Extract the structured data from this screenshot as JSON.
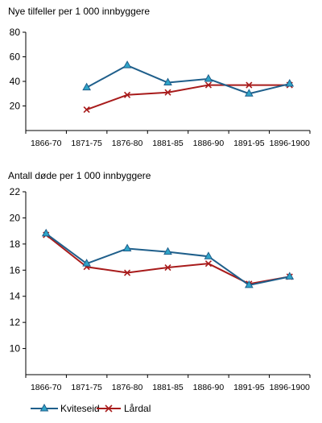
{
  "colors": {
    "kviteseid": "#1f5f8b",
    "kviteseid_marker": "#2fa4c8",
    "lardal": "#a81b1b"
  },
  "legend": {
    "placement": "bottom-left",
    "items": [
      "Kviteseid",
      "Lårdal"
    ]
  },
  "chart_data": [
    {
      "type": "line",
      "title": "Nye tilfeller per 1 000 innbyggere",
      "xlabel": "",
      "ylabel": "",
      "categories": [
        "1866-70",
        "1871-75",
        "1876-80",
        "1881-85",
        "1886-90",
        "1891-95",
        "1896-1900"
      ],
      "ylim": [
        0,
        80
      ],
      "yticks": [
        20,
        40,
        60,
        80
      ],
      "ytick_labels": [
        "20",
        "40",
        "60",
        "80"
      ],
      "grid": false,
      "series": [
        {
          "name": "Kviteseid",
          "marker": "triangle",
          "values": [
            null,
            35,
            53,
            39,
            42,
            30,
            38
          ]
        },
        {
          "name": "Lårdal",
          "marker": "x",
          "values": [
            null,
            17,
            29,
            31,
            37,
            37,
            37
          ]
        }
      ]
    },
    {
      "type": "line",
      "title": "Antall døde per 1 000 innbyggere",
      "xlabel": "",
      "ylabel": "",
      "categories": [
        "1866-70",
        "1871-75",
        "1876-80",
        "1881-85",
        "1886-90",
        "1891-95",
        "1896-1900"
      ],
      "ylim": [
        8,
        22
      ],
      "yticks": [
        10,
        12,
        14,
        16,
        18,
        20,
        22
      ],
      "ytick_labels": [
        "10",
        "12",
        "14",
        "16",
        "18",
        "20",
        "22"
      ],
      "grid": false,
      "series": [
        {
          "name": "Kviteseid",
          "marker": "triangle",
          "values": [
            18.8,
            16.5,
            17.65,
            17.4,
            17.05,
            14.85,
            15.5
          ]
        },
        {
          "name": "Lårdal",
          "marker": "x",
          "values": [
            18.7,
            16.25,
            15.8,
            16.2,
            16.5,
            14.95,
            15.5
          ]
        }
      ]
    }
  ]
}
